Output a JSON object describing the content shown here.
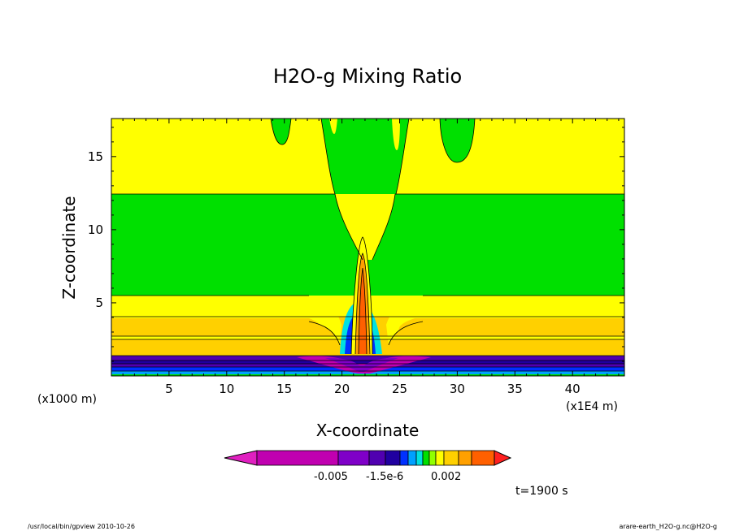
{
  "chart_data": {
    "type": "heatmap",
    "title": "H2O-g Mixing Ratio",
    "xlabel": "X-coordinate",
    "ylabel": "Z-coordinate",
    "x_unit": "(x1E4 m)",
    "y_unit": "(x1000 m)",
    "xlim": [
      0,
      44.5
    ],
    "ylim": [
      0,
      17.6
    ],
    "x_ticks": [
      5,
      10,
      15,
      20,
      25,
      30,
      35,
      40
    ],
    "y_ticks": [
      5,
      10,
      15
    ],
    "grid": false,
    "colorbar": {
      "tick_labels": [
        "-0.005",
        "-1.5e-6",
        "0.002"
      ],
      "colors": [
        "#e020c0",
        "#c000b0",
        "#7f00c8",
        "#5000b0",
        "#2000a0",
        "#0030ff",
        "#00a0ff",
        "#00e0e0",
        "#00e000",
        "#90ff00",
        "#ffff00",
        "#ffd000",
        "#ffa000",
        "#ff6000",
        "#ff2020"
      ]
    },
    "regions": [
      {
        "name": "upper-band",
        "z_range": [
          12.5,
          17.6
        ],
        "color": "#ffff00"
      },
      {
        "name": "middle-band",
        "z_range": [
          5.6,
          12.5
        ],
        "color": "#00e000"
      },
      {
        "name": "lower-yellow",
        "z_range": [
          4.2,
          5.6
        ],
        "color": "#ffff00"
      },
      {
        "name": "lower-orange",
        "z_range": [
          1.5,
          4.2
        ],
        "color": "#ffd000"
      },
      {
        "name": "surface-purple",
        "z_range": [
          0.7,
          1.5
        ],
        "color": "#5000b0"
      },
      {
        "name": "surface-blue",
        "z_range": [
          0.0,
          0.7
        ],
        "color": "#0030ff"
      }
    ],
    "annotation": "t=1900 s"
  },
  "footer": {
    "left": "/usr/local/bin/gpview  2010-10-26",
    "right": "arare-earth_H2O-g.nc@H2O-g"
  }
}
